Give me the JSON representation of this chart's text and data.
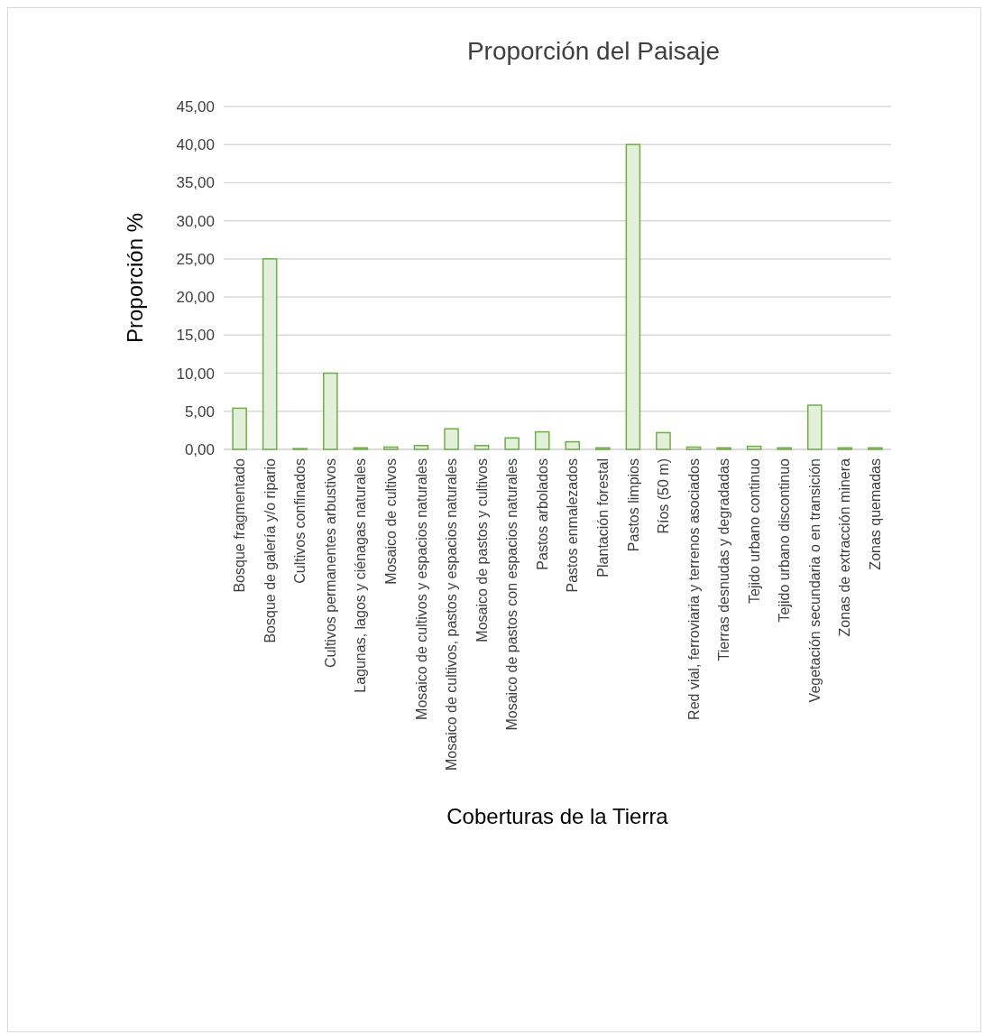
{
  "chart_data": {
    "type": "bar",
    "title": "Proporción del Paisaje",
    "xlabel": "Coberturas de la Tierra",
    "ylabel": "Proporción %",
    "categories": [
      "Bosque fragmentado",
      "Bosque de galería y/o ripario",
      "Cultivos confinados",
      "Cultivos permanentes arbustivos",
      "Lagunas, lagos y ciénagas naturales",
      "Mosaico de cultivos",
      "Mosaico de cultivos y espacios naturales",
      "Mosaico de cultivos, pastos y espacios naturales",
      "Mosaico de pastos y cultivos",
      "Mosaico de pastos con espacios naturales",
      "Pastos arbolados",
      "Pastos enmalezados",
      "Plantación forestal",
      "Pastos limpios",
      "Ríos (50 m)",
      "Red vial, ferroviaria y terrenos asociados",
      "Tierras desnudas y degradadas",
      "Tejido urbano continuo",
      "Tejido urbano discontinuo",
      "Vegetación secundaria o en transición",
      "Zonas de extracción minera",
      "Zonas quemadas"
    ],
    "values": [
      5.4,
      25,
      0.1,
      10,
      0.2,
      0.3,
      0.5,
      2.7,
      0.5,
      1.5,
      2.3,
      1,
      0.2,
      40,
      2.2,
      0.3,
      0.2,
      0.4,
      0.2,
      5.8,
      0.2,
      0.2
    ],
    "color": "#e2efd9",
    "ylim": [
      0,
      45
    ],
    "yticks": [
      {
        "value": 0,
        "label": "0,00"
      },
      {
        "value": 5,
        "label": "5,00"
      },
      {
        "value": 10,
        "label": "10,00"
      },
      {
        "value": 15,
        "label": "15,00"
      },
      {
        "value": 20,
        "label": "20,00"
      },
      {
        "value": 25,
        "label": "25,00"
      },
      {
        "value": 30,
        "label": "30,00"
      },
      {
        "value": 35,
        "label": "35,00"
      },
      {
        "value": 40,
        "label": "40,00"
      },
      {
        "value": 45,
        "label": "45,00"
      }
    ],
    "grid": "y"
  }
}
